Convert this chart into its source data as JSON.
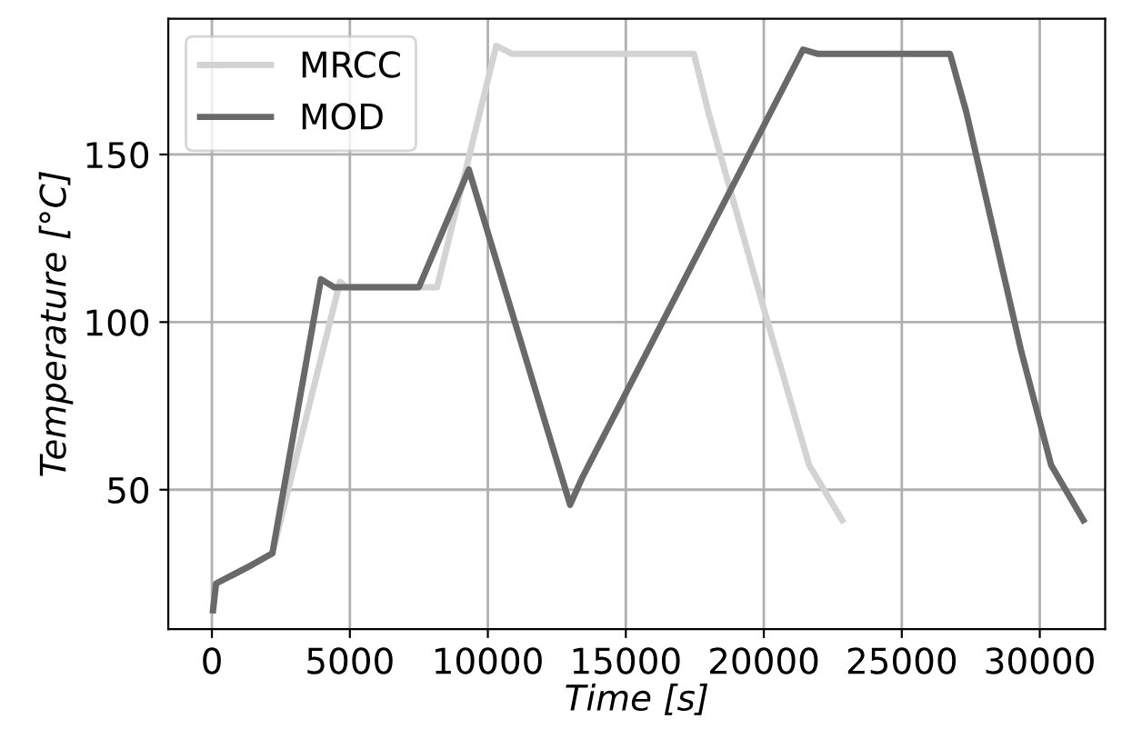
{
  "chart_data": {
    "type": "line",
    "xlabel": "Time [s]",
    "ylabel": "Temperature [°C]",
    "xlim": [
      -1580,
      32370
    ],
    "ylim": [
      8.4,
      190.5
    ],
    "xticks": [
      0,
      5000,
      10000,
      15000,
      20000,
      25000,
      30000
    ],
    "yticks": [
      50,
      100,
      150
    ],
    "grid": true,
    "legend": "top left",
    "line_style": "solid",
    "marker": "none",
    "series": [
      {
        "name": "MRCC",
        "color": "#d3d3d3",
        "x": [
          40,
          150,
          1460,
          2190,
          4640,
          4900,
          8160,
          10300,
          10890,
          17470,
          18020,
          20000,
          21640,
          22840
        ],
        "values": [
          14,
          22,
          27.6,
          31,
          112,
          110.4,
          110.4,
          182.4,
          180,
          180,
          161.7,
          104,
          57.4,
          40.9
        ]
      },
      {
        "name": "MOD",
        "color": "#696969",
        "x": [
          40,
          150,
          1460,
          2190,
          3950,
          4430,
          7500,
          9310,
          12980,
          13420,
          21420,
          21970,
          26750,
          27340,
          29320,
          30410,
          31580
        ],
        "values": [
          14,
          22,
          27.6,
          31,
          112.8,
          110.4,
          110.4,
          145.5,
          45.5,
          53.6,
          181.3,
          180,
          180,
          162.6,
          91.6,
          57.4,
          40.9
        ]
      }
    ]
  }
}
